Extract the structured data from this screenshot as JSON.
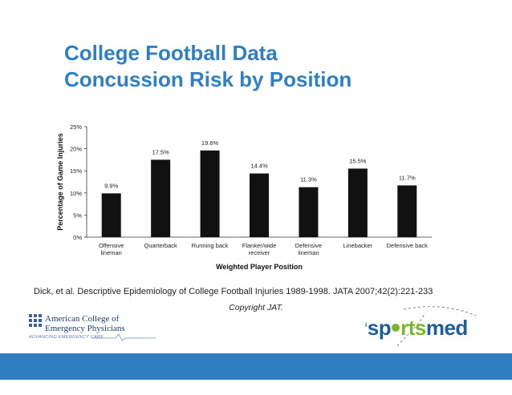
{
  "slide": {
    "title_line1": "College Football Data",
    "title_line2": "Concussion Risk by Position"
  },
  "chart_data": {
    "type": "bar",
    "title": "",
    "xlabel": "Weighted Player Position",
    "ylabel": "Percentage of Game Injuries",
    "ylim": [
      0,
      25
    ],
    "yticks": [
      "0%",
      "5%",
      "10%",
      "15%",
      "20%",
      "25%"
    ],
    "categories": [
      [
        "Offensive",
        "lineman"
      ],
      [
        "Quarterback"
      ],
      [
        "Running back"
      ],
      [
        "Flanker/wide",
        "receiver"
      ],
      [
        "Defensive",
        "lineman"
      ],
      [
        "Linebacker"
      ],
      [
        "Defensive back"
      ]
    ],
    "values": [
      9.9,
      17.5,
      19.6,
      14.4,
      11.3,
      15.5,
      11.7
    ],
    "data_labels": [
      "9.9%",
      "17.5%",
      "19.6%",
      "14.4%",
      "11.3%",
      "15.5%",
      "11.7%"
    ],
    "bar_color": "#111111",
    "grid": false,
    "legend": "none"
  },
  "citation": "Dick, et al. Descriptive Epidemiology of College Football Injuries 1989-1998. JATA 2007;42(2):221-233",
  "copyright": "Copyright JAT.",
  "logos": {
    "acep_line1": "American College of",
    "acep_line2": "Emergency Physicians",
    "acep_tagline": "ADVANCING EMERGENCY CARE",
    "sportsmed_prefix": "i",
    "sportsmed_part1": "sp",
    "sportsmed_part2": "rts",
    "sportsmed_part3": "med"
  },
  "colors": {
    "title": "#2e7fc4",
    "footer_bar": "#2f7fc0",
    "acep_blue": "#1f3b72",
    "sportsmed_green": "#78b72a",
    "sportsmed_blue": "#1f5c99"
  }
}
